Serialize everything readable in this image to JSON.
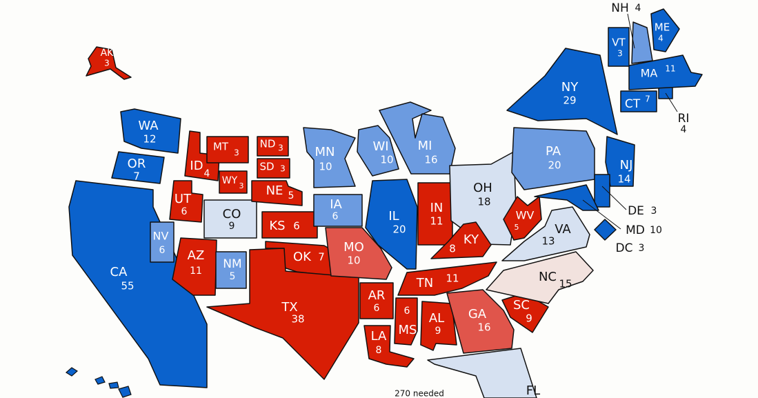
{
  "map": {
    "footer": "270 needed",
    "states": [
      {
        "abbr": "AK",
        "votes": 3,
        "color": "#d81e05"
      },
      {
        "abbr": "WA",
        "votes": 12,
        "color": "#0b62cc"
      },
      {
        "abbr": "OR",
        "votes": 7,
        "color": "#0b62cc"
      },
      {
        "abbr": "CA",
        "votes": 55,
        "color": "#0b62cc"
      },
      {
        "abbr": "NV",
        "votes": 6,
        "color": "#6c9be0"
      },
      {
        "abbr": "ID",
        "votes": 4,
        "color": "#d81e05"
      },
      {
        "abbr": "MT",
        "votes": 3,
        "color": "#d81e05"
      },
      {
        "abbr": "WY",
        "votes": 3,
        "color": "#d81e05"
      },
      {
        "abbr": "UT",
        "votes": 6,
        "color": "#d81e05"
      },
      {
        "abbr": "CO",
        "votes": 9,
        "color": "#d6e1f1"
      },
      {
        "abbr": "AZ",
        "votes": 11,
        "color": "#d81e05"
      },
      {
        "abbr": "NM",
        "votes": 5,
        "color": "#6c9be0"
      },
      {
        "abbr": "ND",
        "votes": 3,
        "color": "#d81e05"
      },
      {
        "abbr": "SD",
        "votes": 3,
        "color": "#d81e05"
      },
      {
        "abbr": "NE",
        "votes": 5,
        "color": "#d81e05"
      },
      {
        "abbr": "KS",
        "votes": 6,
        "color": "#d81e05"
      },
      {
        "abbr": "OK",
        "votes": 7,
        "color": "#d81e05"
      },
      {
        "abbr": "TX",
        "votes": 38,
        "color": "#d81e05"
      },
      {
        "abbr": "MN",
        "votes": 10,
        "color": "#6c9be0"
      },
      {
        "abbr": "IA",
        "votes": 6,
        "color": "#6c9be0"
      },
      {
        "abbr": "MO",
        "votes": 10,
        "color": "#e0554b"
      },
      {
        "abbr": "AR",
        "votes": 6,
        "color": "#d81e05"
      },
      {
        "abbr": "LA",
        "votes": 8,
        "color": "#d81e05"
      },
      {
        "abbr": "WI",
        "votes": 10,
        "color": "#6c9be0"
      },
      {
        "abbr": "IL",
        "votes": 20,
        "color": "#0b62cc"
      },
      {
        "abbr": "MI",
        "votes": 16,
        "color": "#6c9be0"
      },
      {
        "abbr": "IN",
        "votes": 11,
        "color": "#d81e05"
      },
      {
        "abbr": "OH",
        "votes": 18,
        "color": "#d6e1f1"
      },
      {
        "abbr": "KY",
        "votes": 8,
        "color": "#d81e05"
      },
      {
        "abbr": "TN",
        "votes": 11,
        "color": "#d81e05"
      },
      {
        "abbr": "MS",
        "votes": 6,
        "color": "#d81e05"
      },
      {
        "abbr": "AL",
        "votes": 9,
        "color": "#d81e05"
      },
      {
        "abbr": "GA",
        "votes": 16,
        "color": "#e0554b"
      },
      {
        "abbr": "FL",
        "color": "#d6e1f1"
      },
      {
        "abbr": "SC",
        "votes": 9,
        "color": "#d81e05"
      },
      {
        "abbr": "NC",
        "votes": 15,
        "color": "#f2e2de"
      },
      {
        "abbr": "VA",
        "votes": 13,
        "color": "#d6e1f1"
      },
      {
        "abbr": "WV",
        "votes": 5,
        "color": "#d81e05"
      },
      {
        "abbr": "PA",
        "votes": 20,
        "color": "#6c9be0"
      },
      {
        "abbr": "NY",
        "votes": 29,
        "color": "#0b62cc"
      },
      {
        "abbr": "NJ",
        "votes": 14,
        "color": "#0b62cc"
      },
      {
        "abbr": "DE",
        "votes": 3,
        "color": "#0b62cc"
      },
      {
        "abbr": "MD",
        "votes": 10,
        "color": "#0b62cc"
      },
      {
        "abbr": "DC",
        "votes": 3,
        "color": "#0b62cc"
      },
      {
        "abbr": "CT",
        "votes": 7,
        "color": "#0b62cc"
      },
      {
        "abbr": "RI",
        "votes": 4,
        "color": "#0b62cc"
      },
      {
        "abbr": "MA",
        "votes": 11,
        "color": "#0b62cc"
      },
      {
        "abbr": "VT",
        "votes": 3,
        "color": "#0b62cc"
      },
      {
        "abbr": "NH",
        "votes": 4,
        "color": "#6c9be0"
      },
      {
        "abbr": "ME",
        "votes": 4,
        "color": "#0b62cc"
      }
    ]
  }
}
